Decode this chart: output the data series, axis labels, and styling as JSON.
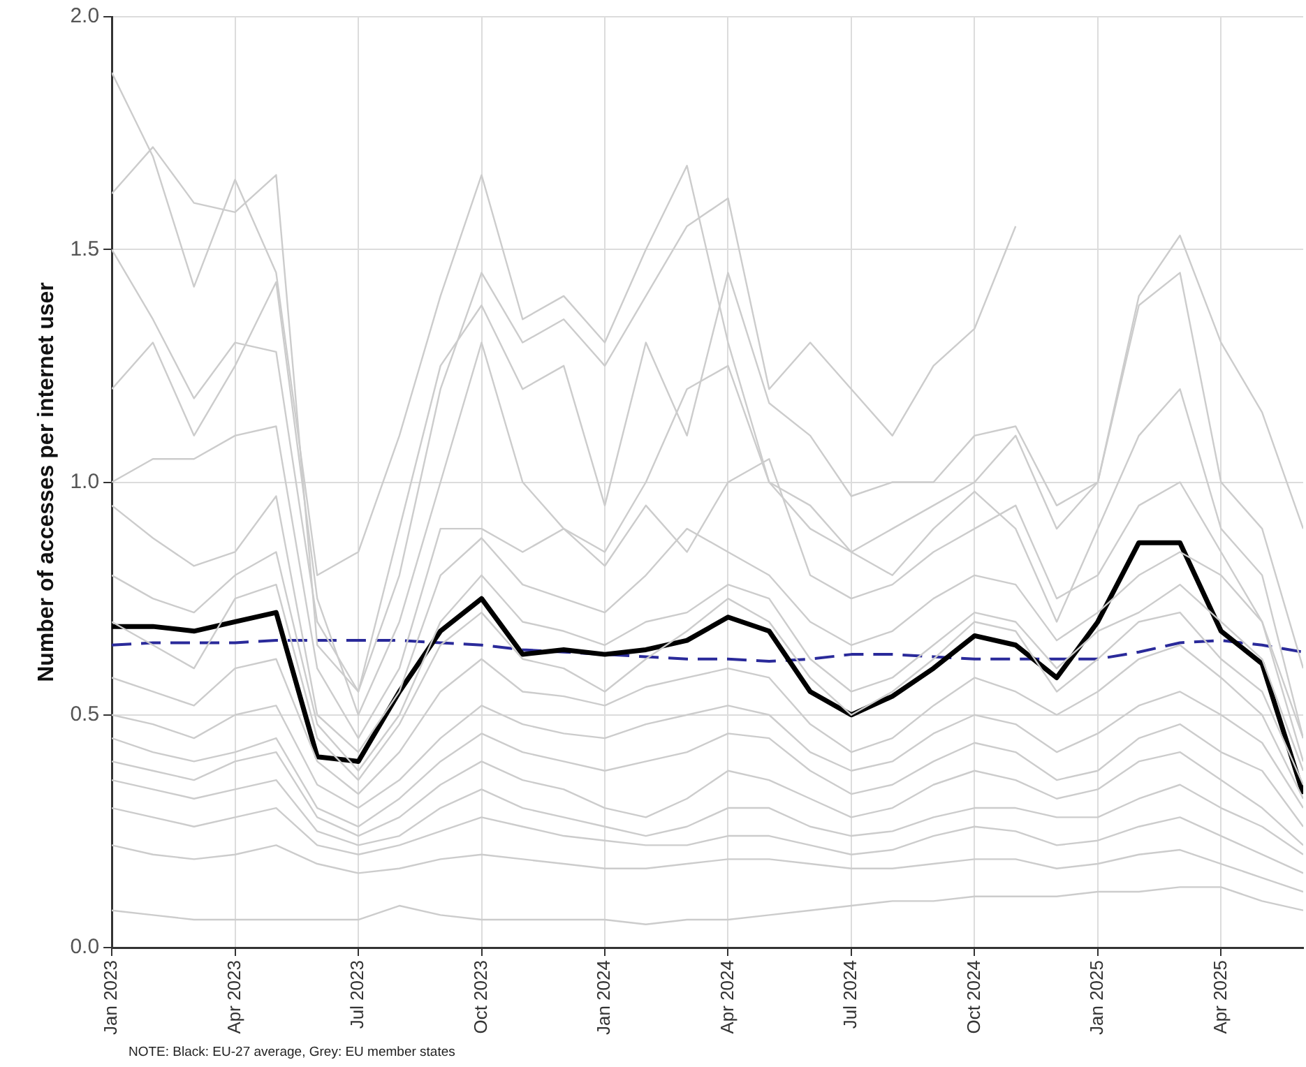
{
  "chart_data": {
    "type": "line",
    "ylabel": "Number of accesses per internet user",
    "x": [
      "2023-01",
      "2023-02",
      "2023-03",
      "2023-04",
      "2023-05",
      "2023-06",
      "2023-07",
      "2023-08",
      "2023-09",
      "2023-10",
      "2023-11",
      "2023-12",
      "2024-01",
      "2024-02",
      "2024-03",
      "2024-04",
      "2024-05",
      "2024-06",
      "2024-07",
      "2024-08",
      "2024-09",
      "2024-10",
      "2024-11",
      "2024-12",
      "2025-01",
      "2025-02",
      "2025-03",
      "2025-04",
      "2025-05",
      "2025-06"
    ],
    "xlim": [
      "2023-01",
      "2025-06"
    ],
    "xticks": [
      {
        "value": "2023-01",
        "label": "Jan 2023"
      },
      {
        "value": "2023-04",
        "label": "Apr 2023"
      },
      {
        "value": "2023-07",
        "label": "Jul 2023"
      },
      {
        "value": "2023-10",
        "label": "Oct 2023"
      },
      {
        "value": "2024-01",
        "label": "Jan 2024"
      },
      {
        "value": "2024-04",
        "label": "Apr 2024"
      },
      {
        "value": "2024-07",
        "label": "Jul 2024"
      },
      {
        "value": "2024-10",
        "label": "Oct 2024"
      },
      {
        "value": "2025-01",
        "label": "Jan 2025"
      },
      {
        "value": "2025-04",
        "label": "Apr 2025"
      }
    ],
    "ylim": [
      0,
      2
    ],
    "yticks": [
      {
        "value": 0,
        "label": "0.0"
      },
      {
        "value": 0.5,
        "label": "0.5"
      },
      {
        "value": 1,
        "label": "1.0"
      },
      {
        "value": 1.5,
        "label": "1.5"
      },
      {
        "value": 2,
        "label": "2.0"
      }
    ],
    "grid": true,
    "legend": false,
    "marker": "none",
    "line_style": "solid",
    "annotations": [
      "NOTE: Black: EU-27 average, Grey: EU member states"
    ],
    "series": [
      {
        "color": "#cccccc",
        "values": [
          1.88,
          1.7,
          1.42,
          1.65,
          1.45,
          0.8,
          0.85,
          1.1,
          1.4,
          1.66,
          1.35,
          1.4,
          1.3,
          1.5,
          1.68,
          1.3,
          1.0,
          0.95,
          0.85,
          0.9,
          0.95,
          1.0,
          1.1,
          0.9,
          1.0,
          1.4,
          1.53,
          1.3,
          1.15,
          0.9
        ]
      },
      {
        "color": "#cccccc",
        "values": [
          1.62,
          1.72,
          1.6,
          1.58,
          1.66,
          0.65,
          0.55,
          0.8,
          1.2,
          1.45,
          1.3,
          1.35,
          1.25,
          1.4,
          1.55,
          1.61,
          1.2,
          1.3,
          1.2,
          1.1,
          1.25,
          1.33,
          1.55,
          null,
          null,
          null,
          null,
          null,
          null,
          null
        ]
      },
      {
        "color": "#cccccc",
        "values": [
          1.5,
          1.35,
          1.18,
          1.3,
          1.28,
          0.7,
          0.55,
          0.9,
          1.25,
          1.38,
          1.2,
          1.25,
          0.95,
          1.3,
          1.1,
          1.45,
          1.17,
          1.1,
          0.97,
          1.0,
          1.0,
          1.1,
          1.12,
          0.95,
          1.0,
          1.38,
          1.45,
          1.0,
          0.9,
          0.6
        ]
      },
      {
        "color": "#cccccc",
        "values": [
          1.2,
          1.3,
          1.1,
          1.25,
          1.43,
          0.75,
          0.5,
          0.7,
          1.0,
          1.3,
          1.0,
          0.9,
          0.85,
          1.0,
          1.2,
          1.25,
          1.0,
          0.9,
          0.85,
          0.8,
          0.9,
          0.98,
          0.9,
          0.7,
          0.9,
          1.1,
          1.2,
          0.9,
          0.8,
          0.45
        ]
      },
      {
        "color": "#cccccc",
        "values": [
          1.0,
          1.05,
          1.05,
          1.1,
          1.12,
          0.6,
          0.45,
          0.6,
          0.9,
          0.9,
          0.85,
          0.9,
          0.82,
          0.95,
          0.85,
          1.0,
          1.05,
          0.8,
          0.75,
          0.78,
          0.85,
          0.9,
          0.95,
          0.75,
          0.8,
          0.95,
          1.0,
          0.85,
          0.7,
          0.4
        ]
      },
      {
        "color": "#cccccc",
        "values": [
          0.95,
          0.88,
          0.82,
          0.85,
          0.97,
          0.5,
          0.42,
          0.55,
          0.8,
          0.88,
          0.78,
          0.75,
          0.72,
          0.8,
          0.9,
          0.85,
          0.8,
          0.7,
          0.65,
          0.68,
          0.75,
          0.8,
          0.78,
          0.66,
          0.72,
          0.8,
          0.85,
          0.8,
          0.7,
          0.45
        ]
      },
      {
        "color": "#cccccc",
        "values": [
          0.8,
          0.75,
          0.72,
          0.8,
          0.85,
          0.48,
          0.38,
          0.5,
          0.7,
          0.8,
          0.7,
          0.68,
          0.65,
          0.7,
          0.72,
          0.78,
          0.75,
          0.62,
          0.55,
          0.58,
          0.65,
          0.72,
          0.7,
          0.6,
          0.68,
          0.72,
          0.78,
          0.7,
          0.62,
          0.38
        ]
      },
      {
        "color": "#cccccc",
        "values": [
          0.7,
          0.65,
          0.6,
          0.75,
          0.78,
          0.45,
          0.36,
          0.48,
          0.65,
          0.72,
          0.62,
          0.6,
          0.55,
          0.62,
          0.68,
          0.75,
          0.7,
          0.58,
          0.5,
          0.55,
          0.62,
          0.7,
          0.68,
          0.55,
          0.62,
          0.7,
          0.72,
          0.62,
          0.55,
          0.35
        ]
      },
      {
        "color": "#cccccc",
        "values": [
          0.58,
          0.55,
          0.52,
          0.6,
          0.62,
          0.4,
          0.33,
          0.42,
          0.55,
          0.62,
          0.55,
          0.54,
          0.52,
          0.56,
          0.58,
          0.6,
          0.58,
          0.48,
          0.42,
          0.45,
          0.52,
          0.58,
          0.55,
          0.5,
          0.55,
          0.62,
          0.65,
          0.58,
          0.5,
          0.32
        ]
      },
      {
        "color": "#cccccc",
        "values": [
          0.5,
          0.48,
          0.45,
          0.5,
          0.52,
          0.35,
          0.3,
          0.36,
          0.45,
          0.52,
          0.48,
          0.46,
          0.45,
          0.48,
          0.5,
          0.52,
          0.5,
          0.42,
          0.38,
          0.4,
          0.46,
          0.5,
          0.48,
          0.42,
          0.46,
          0.52,
          0.55,
          0.5,
          0.44,
          0.3
        ]
      },
      {
        "color": "#cccccc",
        "values": [
          0.45,
          0.42,
          0.4,
          0.42,
          0.45,
          0.3,
          0.26,
          0.32,
          0.4,
          0.46,
          0.42,
          0.4,
          0.38,
          0.4,
          0.42,
          0.46,
          0.45,
          0.38,
          0.33,
          0.35,
          0.4,
          0.44,
          0.42,
          0.36,
          0.38,
          0.45,
          0.48,
          0.42,
          0.38,
          0.26
        ]
      },
      {
        "color": "#cccccc",
        "values": [
          0.4,
          0.38,
          0.36,
          0.4,
          0.42,
          0.28,
          0.24,
          0.28,
          0.35,
          0.4,
          0.36,
          0.34,
          0.3,
          0.28,
          0.32,
          0.38,
          0.36,
          0.32,
          0.28,
          0.3,
          0.35,
          0.38,
          0.36,
          0.32,
          0.34,
          0.4,
          0.42,
          0.36,
          0.3,
          0.22
        ]
      },
      {
        "color": "#cccccc",
        "values": [
          0.36,
          0.34,
          0.32,
          0.34,
          0.36,
          0.25,
          0.22,
          0.24,
          0.3,
          0.34,
          0.3,
          0.28,
          0.26,
          0.24,
          0.26,
          0.3,
          0.3,
          0.26,
          0.24,
          0.25,
          0.28,
          0.3,
          0.3,
          0.28,
          0.28,
          0.32,
          0.35,
          0.3,
          0.26,
          0.2
        ]
      },
      {
        "color": "#cccccc",
        "values": [
          0.3,
          0.28,
          0.26,
          0.28,
          0.3,
          0.22,
          0.2,
          0.22,
          0.25,
          0.28,
          0.26,
          0.24,
          0.23,
          0.22,
          0.22,
          0.24,
          0.24,
          0.22,
          0.2,
          0.21,
          0.24,
          0.26,
          0.25,
          0.22,
          0.23,
          0.26,
          0.28,
          0.24,
          0.2,
          0.16
        ]
      },
      {
        "color": "#cccccc",
        "values": [
          0.22,
          0.2,
          0.19,
          0.2,
          0.22,
          0.18,
          0.16,
          0.17,
          0.19,
          0.2,
          0.19,
          0.18,
          0.17,
          0.17,
          0.18,
          0.19,
          0.19,
          0.18,
          0.17,
          0.17,
          0.18,
          0.19,
          0.19,
          0.17,
          0.18,
          0.2,
          0.21,
          0.18,
          0.15,
          0.12
        ]
      },
      {
        "color": "#cccccc",
        "values": [
          0.08,
          0.07,
          0.06,
          0.06,
          0.06,
          0.06,
          0.06,
          0.09,
          0.07,
          0.06,
          0.06,
          0.06,
          0.06,
          0.05,
          0.06,
          0.06,
          0.07,
          0.08,
          0.09,
          0.1,
          0.1,
          0.11,
          0.11,
          0.11,
          0.12,
          0.12,
          0.13,
          0.13,
          0.1,
          0.08
        ]
      },
      {
        "color": "#000000",
        "values": [
          0.69,
          0.69,
          0.68,
          0.7,
          0.72,
          0.41,
          0.4,
          0.55,
          0.68,
          0.75,
          0.63,
          0.64,
          0.63,
          0.64,
          0.66,
          0.71,
          0.68,
          0.55,
          0.5,
          0.54,
          0.6,
          0.67,
          0.65,
          0.58,
          0.7,
          0.87,
          0.87,
          0.68,
          0.61,
          0.33
        ]
      },
      {
        "color": "#2a2a9a",
        "line_style": "dashed",
        "values": [
          0.65,
          0.655,
          0.655,
          0.655,
          0.66,
          0.66,
          0.66,
          0.66,
          0.655,
          0.65,
          0.64,
          0.635,
          0.63,
          0.625,
          0.62,
          0.62,
          0.615,
          0.62,
          0.63,
          0.63,
          0.625,
          0.62,
          0.62,
          0.62,
          0.62,
          0.635,
          0.655,
          0.66,
          0.65,
          0.635
        ]
      }
    ]
  }
}
